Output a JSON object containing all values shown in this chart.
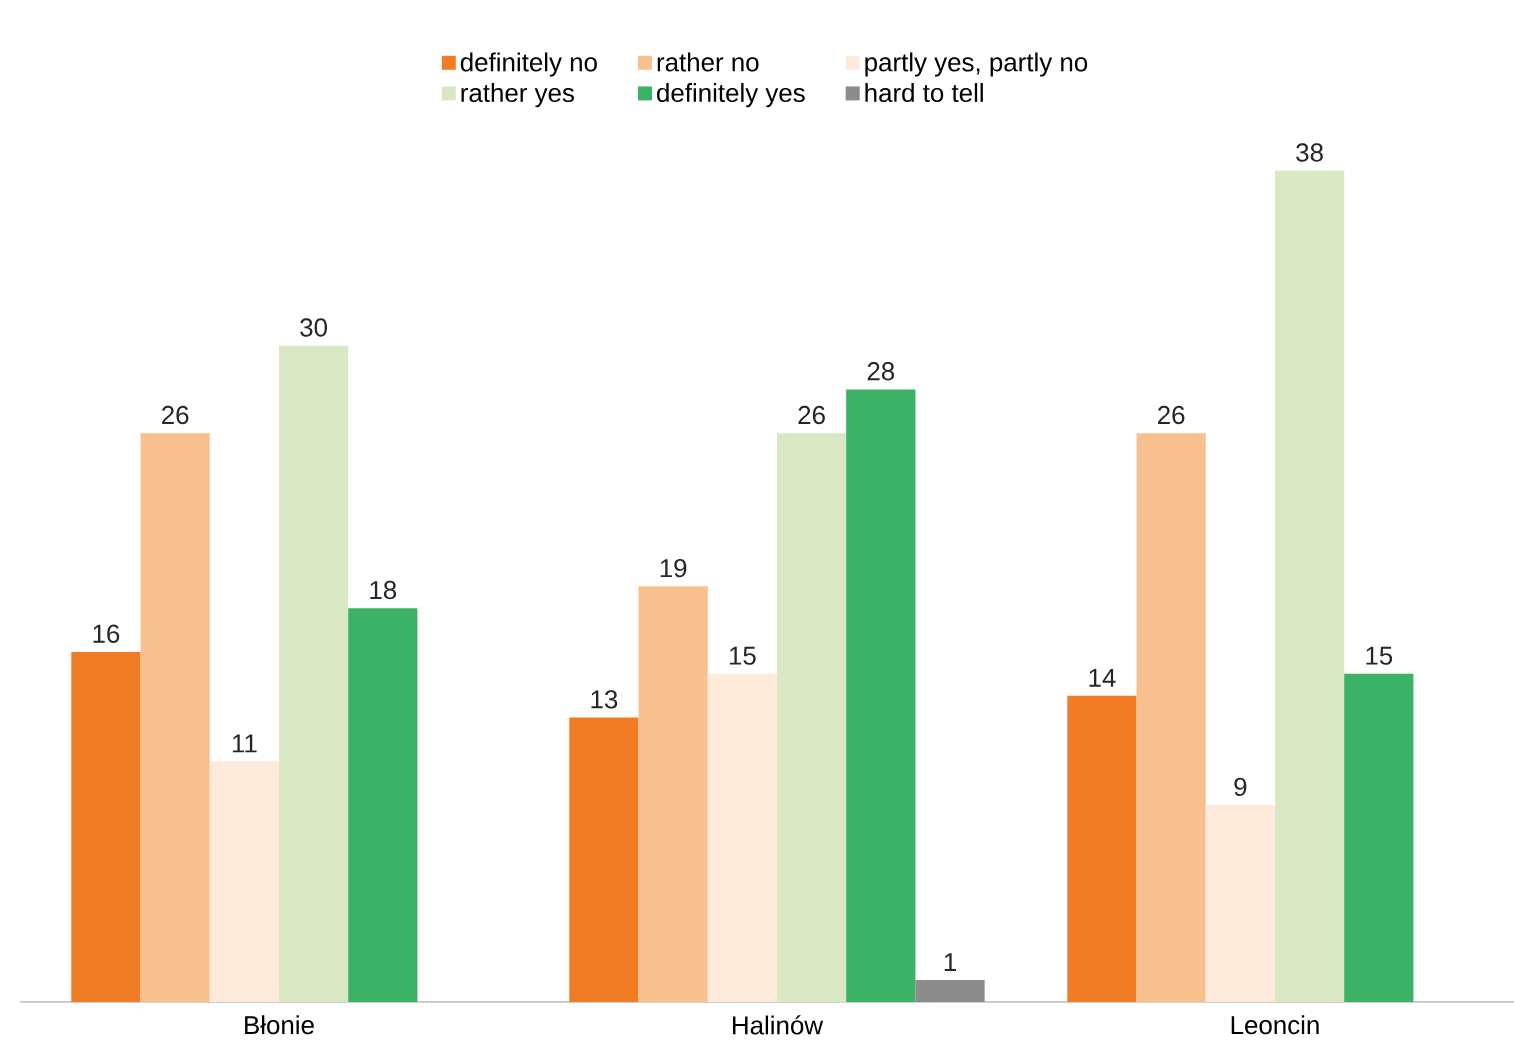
{
  "chart_data": {
    "type": "bar",
    "categories": [
      "Błonie",
      "Halinów",
      "Leoncin"
    ],
    "series": [
      {
        "name": "definitely no",
        "color": "#f07d26",
        "values": [
          16,
          13,
          14
        ]
      },
      {
        "name": "rather no",
        "color": "#f9c08f",
        "values": [
          26,
          19,
          26
        ]
      },
      {
        "name": "partly yes, partly no",
        "color": "#fdeadb",
        "values": [
          11,
          15,
          9
        ]
      },
      {
        "name": "rather yes",
        "color": "#d9e7c3",
        "values": [
          30,
          26,
          38
        ]
      },
      {
        "name": "definitely yes",
        "color": "#3bb266",
        "values": [
          18,
          28,
          15
        ]
      },
      {
        "name": "hard to tell",
        "color": "#8c8c8c",
        "values": [
          null,
          1,
          null
        ]
      }
    ],
    "data_labels": true,
    "legend": "top"
  }
}
